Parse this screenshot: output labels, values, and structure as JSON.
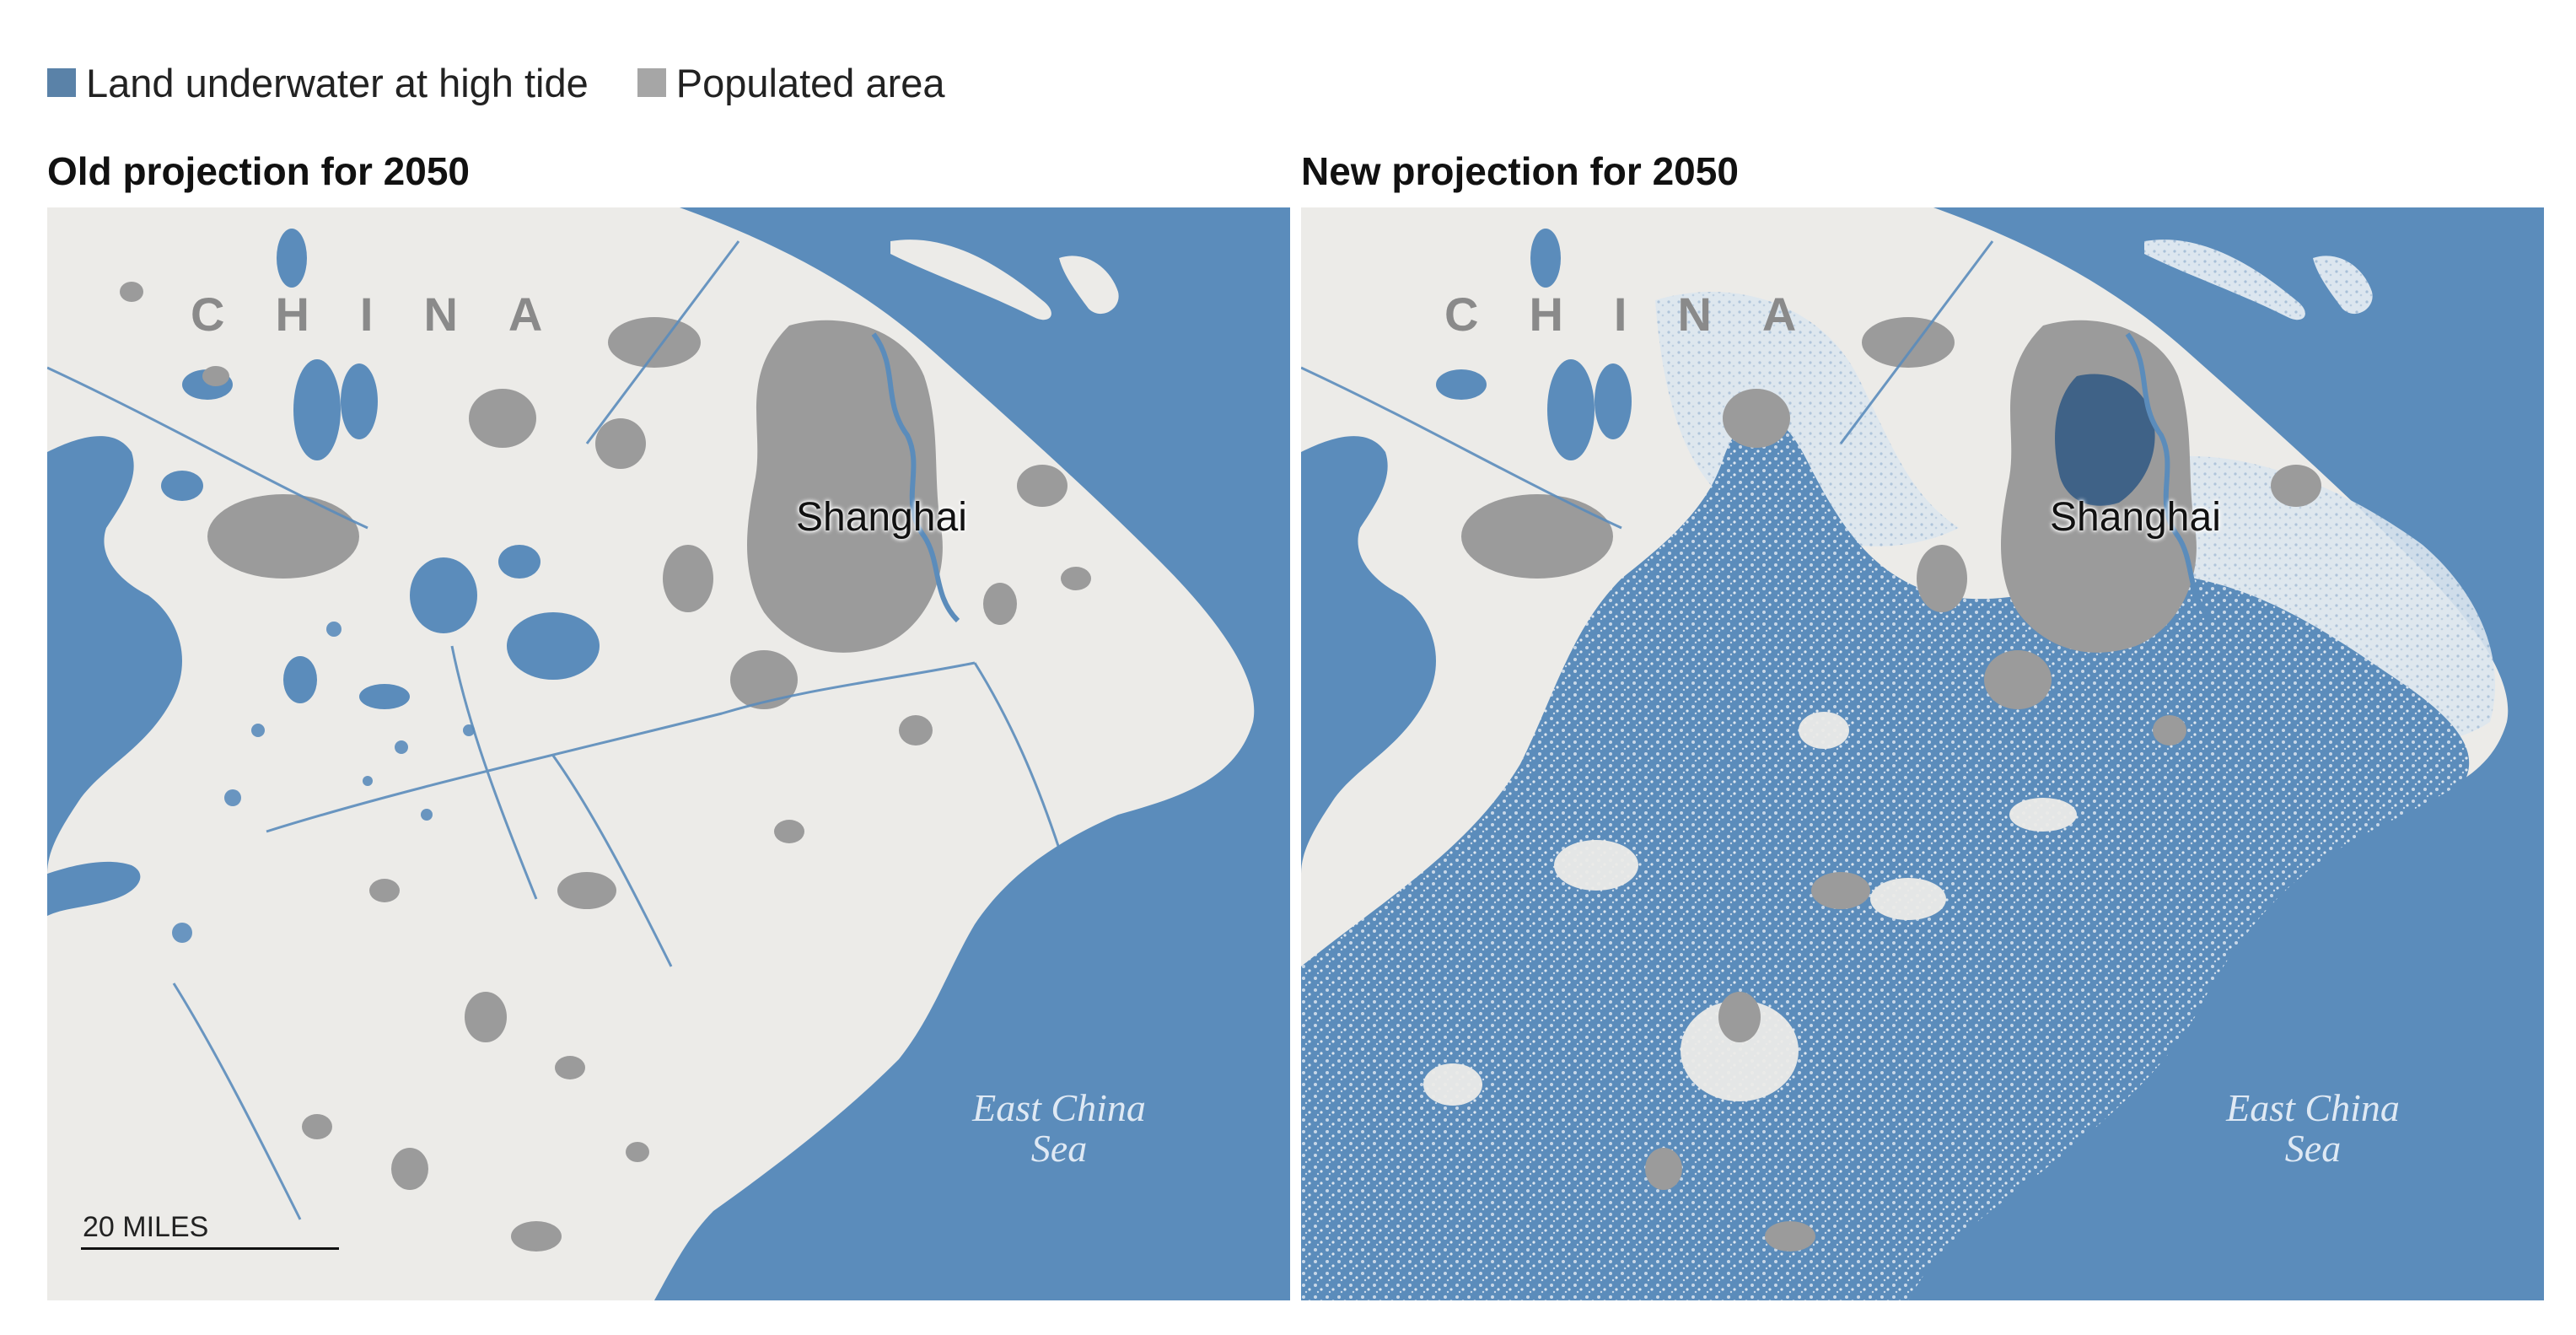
{
  "legend": {
    "items": [
      {
        "label": "Land underwater at high tide",
        "color": "#5a82a8"
      },
      {
        "label": "Populated area",
        "color": "#a6a6a6"
      }
    ]
  },
  "panels": [
    {
      "title": "Old projection for 2050",
      "country_label": "CHINA",
      "city_label": "Shanghai",
      "sea_label_line1": "East China",
      "sea_label_line2": "Sea",
      "scale_label": "20 MILES",
      "flood_extent": "low"
    },
    {
      "title": "New projection for 2050",
      "country_label": "CHINA",
      "city_label": "Shanghai",
      "sea_label_line1": "East China",
      "sea_label_line2": "Sea",
      "flood_extent": "high"
    }
  ],
  "colors": {
    "sea": "#5b8cbb",
    "land": "#ecebe8",
    "populated": "#9b9b9b",
    "flooded": "#5b8cbb",
    "flooded_light": "#c9d8e8"
  }
}
